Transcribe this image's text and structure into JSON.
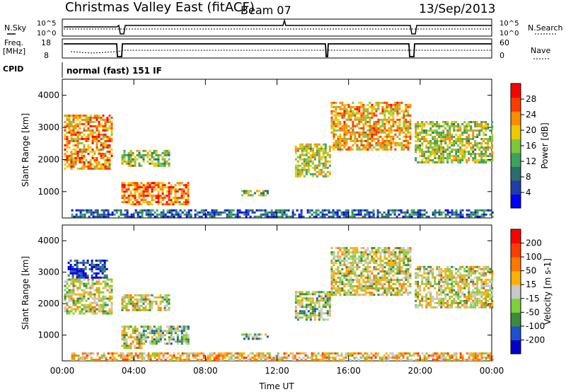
{
  "header": {
    "title": "Christmas Valley East (fitACF)",
    "beam": "Beam 07",
    "date": "13/Sep/2013"
  },
  "status_panels": {
    "nsky_label": "N.Sky",
    "nsearch_label": "N.Search",
    "noise_ticks_left": [
      "10^5",
      "10^0"
    ],
    "noise_ticks_right": [
      "10^5",
      "10^0"
    ],
    "freq_label_1": "Freq.",
    "freq_label_2": "[MHz]",
    "freq_ticks": [
      "18",
      "8"
    ],
    "nave_label": "Nave",
    "nave_ticks": [
      "60",
      "0"
    ],
    "cpid_label": "CPID",
    "cpid_value": "normal (fast) 151 IF"
  },
  "chart_data": [
    {
      "type": "heatmap",
      "panel": "power",
      "ylabel": "Slant Range [km]",
      "xlabel": "",
      "ylim": [
        180,
        4500
      ],
      "xlim": [
        0,
        24
      ],
      "yticks": [
        "4000",
        "3000",
        "2000",
        "1000"
      ],
      "colorbar_label": "Power [dB]",
      "colorbar_ticks": [
        "28",
        "24",
        "20",
        "16",
        "12",
        "8",
        "4"
      ],
      "colors": [
        "#0000ff",
        "#1e3fa8",
        "#2a6e6e",
        "#3aa35e",
        "#7ec63a",
        "#f0c800",
        "#ff8c00",
        "#ff3c00",
        "#ff0000"
      ],
      "regions": [
        {
          "t0": 0.1,
          "t1": 2.8,
          "r0": 1700,
          "r1": 3400,
          "level": 0.75
        },
        {
          "t0": 3.3,
          "t1": 6.0,
          "r0": 1800,
          "r1": 2300,
          "level": 0.5
        },
        {
          "t0": 3.3,
          "t1": 7.0,
          "r0": 600,
          "r1": 1300,
          "level": 0.8
        },
        {
          "t0": 10.0,
          "t1": 11.5,
          "r0": 900,
          "r1": 1050,
          "level": 0.45
        },
        {
          "t0": 13.0,
          "t1": 15.0,
          "r0": 1500,
          "r1": 2500,
          "level": 0.55
        },
        {
          "t0": 15.0,
          "t1": 19.5,
          "r0": 2300,
          "r1": 3800,
          "level": 0.7
        },
        {
          "t0": 19.7,
          "t1": 24.0,
          "r0": 1900,
          "r1": 3200,
          "level": 0.55
        },
        {
          "t0": 0.5,
          "t1": 24.0,
          "r0": 200,
          "r1": 450,
          "level": 0.2
        }
      ]
    },
    {
      "type": "heatmap",
      "panel": "velocity",
      "ylabel": "Slant Range [km]",
      "xlabel": "Time UT",
      "ylim": [
        180,
        4500
      ],
      "xlim": [
        0,
        24
      ],
      "yticks": [
        "4000",
        "3000",
        "2000",
        "1000"
      ],
      "xticks": [
        "00:00",
        "04:00",
        "08:00",
        "12:00",
        "16:00",
        "20:00",
        "00:00"
      ],
      "colorbar_label": "Velocity [m s-1]",
      "colorbar_ticks": [
        "200",
        "100",
        "50",
        "15",
        "-15",
        "-50",
        "-100",
        "-200"
      ],
      "colors": [
        "#0000cc",
        "#1e50d0",
        "#3c8a3c",
        "#7ed03a",
        "#c8c8c8",
        "#ffb000",
        "#ff7800",
        "#ff3c00",
        "#ff0000"
      ],
      "regions": [
        {
          "t0": 0.3,
          "t1": 2.5,
          "r0": 2800,
          "r1": 3400,
          "level": 0.05
        },
        {
          "t0": 0.1,
          "t1": 2.8,
          "r0": 1700,
          "r1": 2800,
          "level": 0.5
        },
        {
          "t0": 3.3,
          "t1": 6.0,
          "r0": 1800,
          "r1": 2300,
          "level": 0.5
        },
        {
          "t0": 4.5,
          "t1": 7.0,
          "r0": 700,
          "r1": 1300,
          "level": 0.38
        },
        {
          "t0": 3.3,
          "t1": 4.5,
          "r0": 600,
          "r1": 1300,
          "level": 0.5
        },
        {
          "t0": 10.0,
          "t1": 11.5,
          "r0": 900,
          "r1": 1050,
          "level": 0.38
        },
        {
          "t0": 13.0,
          "t1": 15.0,
          "r0": 1500,
          "r1": 2400,
          "level": 0.4
        },
        {
          "t0": 15.0,
          "t1": 19.5,
          "r0": 2300,
          "r1": 3800,
          "level": 0.5
        },
        {
          "t0": 19.7,
          "t1": 24.0,
          "r0": 1900,
          "r1": 3200,
          "level": 0.5
        },
        {
          "t0": 0.5,
          "t1": 24.0,
          "r0": 200,
          "r1": 450,
          "level": 0.62
        }
      ]
    }
  ]
}
